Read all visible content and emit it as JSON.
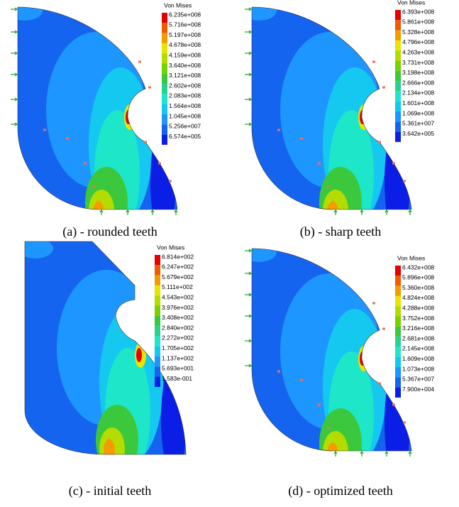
{
  "figures": [
    {
      "caption": "(a) - rounded teeth",
      "legend": {
        "title": "Von Mises",
        "labels": [
          "6.235e+008",
          "5.716e+008",
          "5.197e+008",
          "4.678e+008",
          "4.159e+008",
          "3.640e+008",
          "3.121e+008",
          "2.602e+008",
          "2.083e+008",
          "1.564e+008",
          "1.045e+008",
          "5.256e+007",
          "6.574e+005"
        ]
      }
    },
    {
      "caption": "(b) - sharp teeth",
      "legend": {
        "title": "Von Mises",
        "labels": [
          "6.393e+008",
          "5.861e+008",
          "5.328e+008",
          "4.796e+008",
          "4.263e+008",
          "3.731e+008",
          "3.198e+008",
          "2.666e+008",
          "2.134e+008",
          "1.601e+008",
          "1.069e+008",
          "5.361e+007",
          "3.642e+005"
        ]
      }
    },
    {
      "caption": "(c) - initial teeth",
      "legend": {
        "title": "Von Mises",
        "labels": [
          "6.814e+002",
          "6.247e+002",
          "5.679e+002",
          "5.111e+002",
          "4.543e+002",
          "3.976e+002",
          "3.408e+002",
          "2.840e+002",
          "2.272e+002",
          "1.705e+002",
          "1.137e+002",
          "5.693e+001",
          "1.583e-001"
        ]
      }
    },
    {
      "caption": "(d) - optimized teeth",
      "legend": {
        "title": "Von Mises",
        "labels": [
          "6.432e+008",
          "5.896e+008",
          "5.360e+008",
          "4.824e+008",
          "4.288e+008",
          "3.752e+008",
          "3.216e+008",
          "2.681e+008",
          "2.145e+008",
          "1.609e+008",
          "1.073e+008",
          "5.367e+007",
          "7.900e+004"
        ]
      }
    }
  ],
  "legend_colors": [
    "#e60000",
    "#f05a00",
    "#f59b00",
    "#e6e600",
    "#b4dc00",
    "#78d200",
    "#3cc83c",
    "#28d28c",
    "#1ee6c8",
    "#14c8f0",
    "#1e96ff",
    "#1464f0",
    "#0a1ee6"
  ]
}
